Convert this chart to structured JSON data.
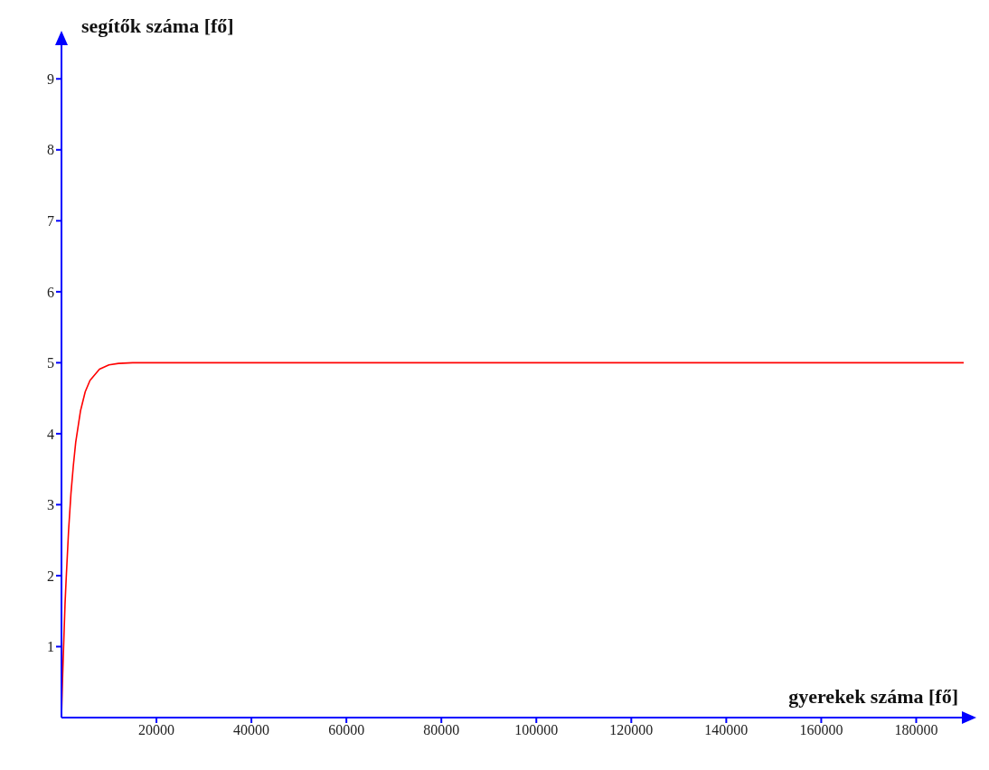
{
  "chart_data": {
    "type": "line",
    "xlabel": "gyerekek száma [fő]",
    "ylabel": "segítők száma [fő]",
    "x": [
      0,
      250,
      500,
      750,
      1000,
      1500,
      2000,
      2500,
      3000,
      4000,
      5000,
      6000,
      8000,
      10000,
      12000,
      15000,
      20000,
      190000
    ],
    "series": [
      {
        "color": "#ff0000",
        "values": [
          0,
          0.6,
          1.1,
          1.6,
          1.97,
          2.64,
          3.16,
          3.55,
          3.88,
          4.32,
          4.59,
          4.75,
          4.91,
          4.97,
          4.99,
          5,
          5,
          5
        ]
      }
    ],
    "xlim": [
      0,
      190000
    ],
    "ylim": [
      0,
      9.5
    ],
    "xticks": [
      20000,
      40000,
      60000,
      80000,
      100000,
      120000,
      140000,
      160000,
      180000
    ],
    "yticks": [
      1,
      2,
      3,
      4,
      5,
      6,
      7,
      8,
      9
    ]
  }
}
